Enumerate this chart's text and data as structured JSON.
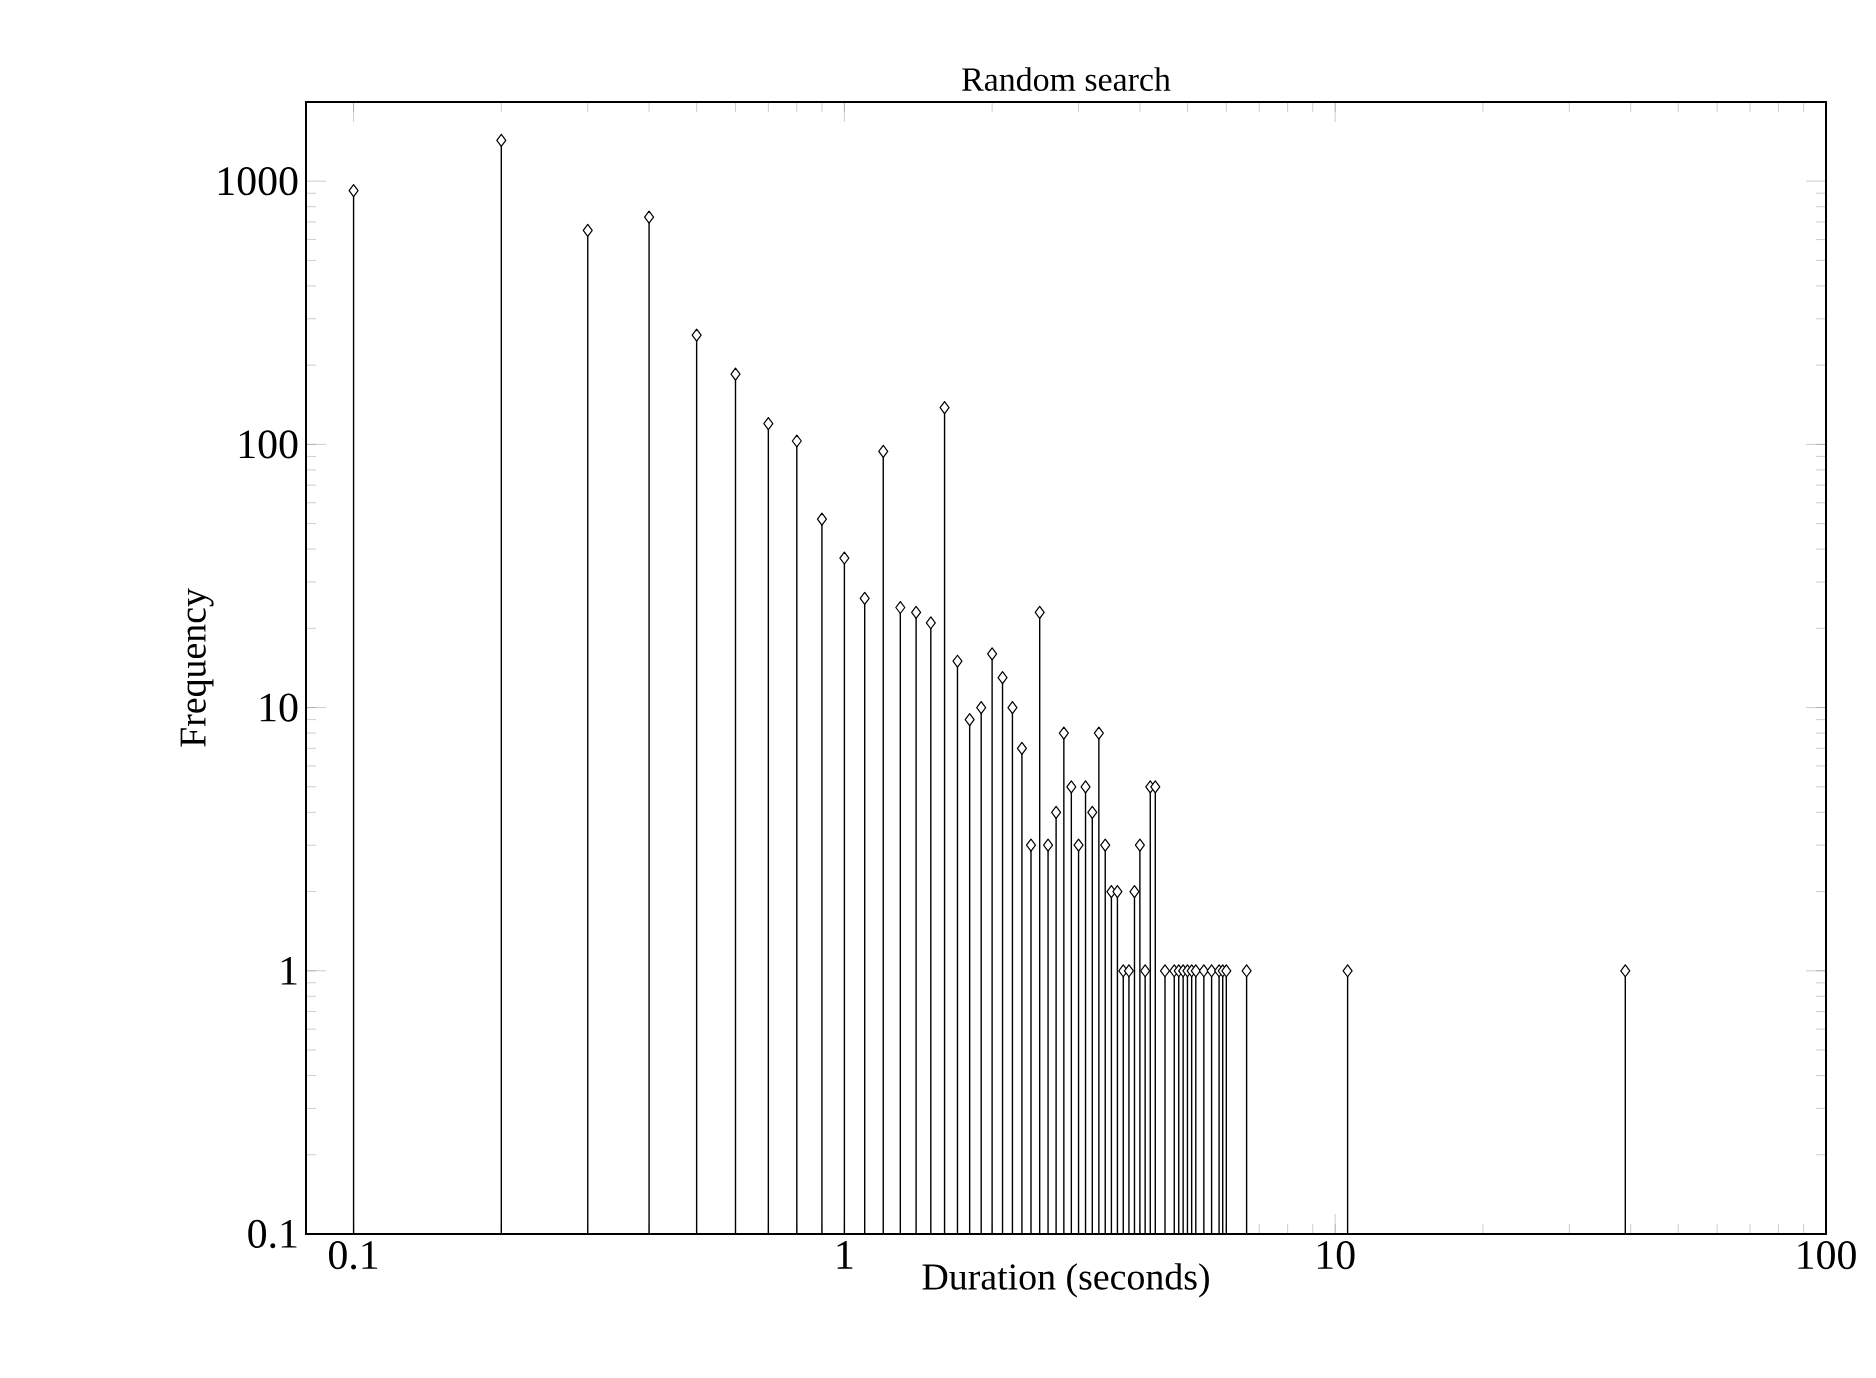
{
  "chart_data": {
    "type": "lollipop",
    "title": "Random search",
    "xlabel": "Duration (seconds)",
    "ylabel": "Frequency",
    "log": "xy",
    "marker": "diamond",
    "line_style": "solid",
    "color": "#000000",
    "xlim": [
      0.08,
      100
    ],
    "ylim": [
      0.1,
      2000
    ],
    "xticks": [
      0.1,
      1,
      10,
      100
    ],
    "yticks": [
      0.1,
      1,
      10,
      100,
      1000
    ],
    "x": [
      0.1,
      0.2,
      0.3,
      0.4,
      0.5,
      0.6,
      0.7,
      0.8,
      0.9,
      1.0,
      1.1,
      1.2,
      1.3,
      1.4,
      1.5,
      1.6,
      1.7,
      1.8,
      1.9,
      2.0,
      2.1,
      2.2,
      2.3,
      2.4,
      2.5,
      2.6,
      2.7,
      2.8,
      2.9,
      3.0,
      3.1,
      3.2,
      3.3,
      3.4,
      3.5,
      3.6,
      3.7,
      3.8,
      3.9,
      4.0,
      4.1,
      4.2,
      4.3,
      4.5,
      4.7,
      4.8,
      4.9,
      5.0,
      5.1,
      5.2,
      5.4,
      5.6,
      5.8,
      5.9,
      6.0,
      6.6,
      10.6,
      39
    ],
    "values": [
      920,
      1430,
      650,
      730,
      260,
      185,
      120,
      103,
      52,
      37,
      26,
      94,
      24,
      23,
      21,
      138,
      15,
      9,
      10,
      16,
      13,
      10,
      7,
      3,
      23,
      3,
      4,
      8,
      5,
      3,
      5,
      4,
      8,
      3,
      2,
      2,
      1,
      1,
      2,
      3,
      1,
      5,
      5,
      1,
      1,
      1,
      1,
      1,
      1,
      1,
      1,
      1,
      1,
      1,
      1,
      1,
      1,
      1
    ]
  }
}
